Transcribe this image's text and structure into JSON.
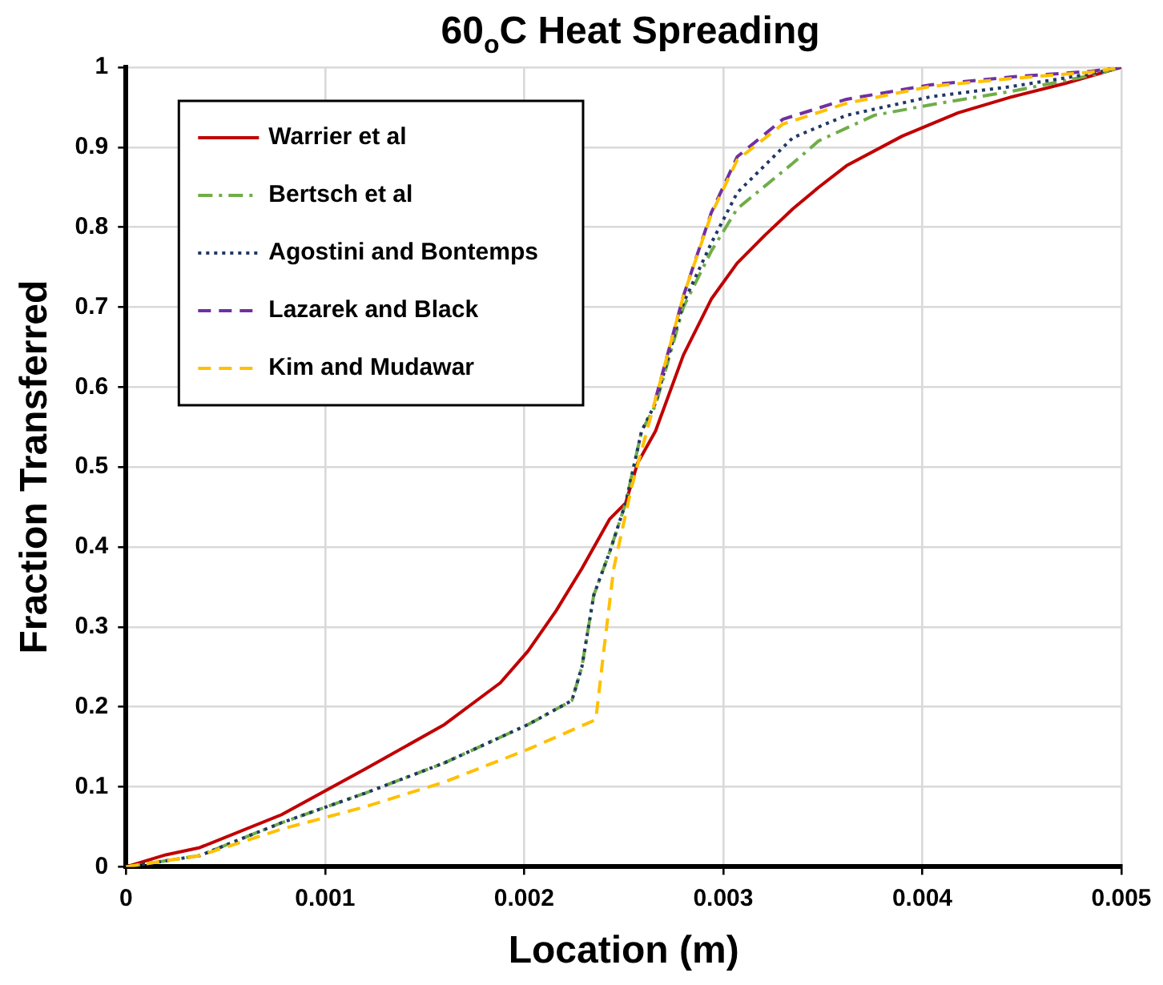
{
  "chart_data": {
    "type": "line",
    "title": "60$_{o}$C Heat Spreading",
    "xlabel": "Location (m)",
    "ylabel": "Fraction Transferred",
    "xlim": [
      0,
      0.005
    ],
    "xticks": [
      0,
      0.001,
      0.002,
      0.003,
      0.004,
      0.005
    ],
    "ylim": [
      0,
      1
    ],
    "yticks": [
      0,
      0.1,
      0.2,
      0.3,
      0.4,
      0.5,
      0.6,
      0.7,
      0.8,
      0.9,
      1
    ],
    "grid": true,
    "legend": "top left",
    "marker": "none",
    "series": [
      {
        "name": "Warrier et al",
        "color": "#c00000",
        "line_style": "solid",
        "x": [
          0,
          0.0002,
          0.00037,
          0.00078,
          0.0012,
          0.0016,
          0.00188,
          0.00202,
          0.00216,
          0.00229,
          0.00243,
          0.00251,
          0.00257,
          0.00266,
          0.0028,
          0.00294,
          0.00307,
          0.00321,
          0.00335,
          0.00348,
          0.00362,
          0.0039,
          0.00418,
          0.00445,
          0.00472,
          0.005
        ],
        "values": [
          0,
          0.015,
          0.024,
          0.065,
          0.122,
          0.178,
          0.23,
          0.27,
          0.32,
          0.373,
          0.435,
          0.455,
          0.505,
          0.545,
          0.64,
          0.71,
          0.755,
          0.79,
          0.823,
          0.85,
          0.877,
          0.914,
          0.943,
          0.963,
          0.98,
          1
        ]
      },
      {
        "name": "Bertsch et al",
        "color": "#70ad47",
        "line_style": "dashdot",
        "x": [
          0,
          0.00037,
          0.00078,
          0.0012,
          0.0016,
          0.00202,
          0.00224,
          0.00229,
          0.00235,
          0.00243,
          0.00251,
          0.00259,
          0.00266,
          0.0028,
          0.00294,
          0.00307,
          0.00335,
          0.00348,
          0.00376,
          0.00404,
          0.00445,
          0.00485,
          0.005
        ],
        "values": [
          0,
          0.014,
          0.055,
          0.092,
          0.13,
          0.178,
          0.208,
          0.25,
          0.34,
          0.394,
          0.455,
          0.545,
          0.577,
          0.7,
          0.77,
          0.823,
          0.88,
          0.908,
          0.94,
          0.953,
          0.97,
          0.99,
          1
        ]
      },
      {
        "name": "Agostini and Bontemps",
        "color": "#203864",
        "line_style": "dotted",
        "x": [
          0,
          0.00037,
          0.00078,
          0.0012,
          0.0016,
          0.00202,
          0.00224,
          0.00229,
          0.00235,
          0.00243,
          0.00251,
          0.00259,
          0.00266,
          0.0028,
          0.00294,
          0.00307,
          0.00335,
          0.00362,
          0.00404,
          0.00445,
          0.00485,
          0.005
        ],
        "values": [
          0,
          0.014,
          0.055,
          0.092,
          0.13,
          0.178,
          0.208,
          0.25,
          0.34,
          0.394,
          0.455,
          0.545,
          0.58,
          0.705,
          0.78,
          0.843,
          0.912,
          0.94,
          0.963,
          0.976,
          0.992,
          1
        ]
      },
      {
        "name": "Lazarek and Black",
        "color": "#7030a0",
        "line_style": "dashed",
        "x": [
          0.00266,
          0.0028,
          0.00294,
          0.00307,
          0.0033,
          0.00362,
          0.00404,
          0.00445,
          0.00485,
          0.005
        ],
        "values": [
          0.585,
          0.714,
          0.818,
          0.888,
          0.935,
          0.96,
          0.978,
          0.988,
          0.995,
          1
        ]
      },
      {
        "name": "Kim and Mudawar",
        "color": "#ffc000",
        "line_style": "dashed",
        "x": [
          0,
          0.00037,
          0.00078,
          0.0012,
          0.0016,
          0.00202,
          0.00236,
          0.0024,
          0.00245,
          0.00254,
          0.00266,
          0.0028,
          0.00294,
          0.00307,
          0.0033,
          0.00362,
          0.00404,
          0.00445,
          0.00485,
          0.005
        ],
        "values": [
          0,
          0.014,
          0.047,
          0.075,
          0.106,
          0.147,
          0.184,
          0.27,
          0.373,
          0.475,
          0.585,
          0.714,
          0.816,
          0.884,
          0.929,
          0.955,
          0.976,
          0.986,
          0.994,
          1
        ]
      }
    ]
  }
}
